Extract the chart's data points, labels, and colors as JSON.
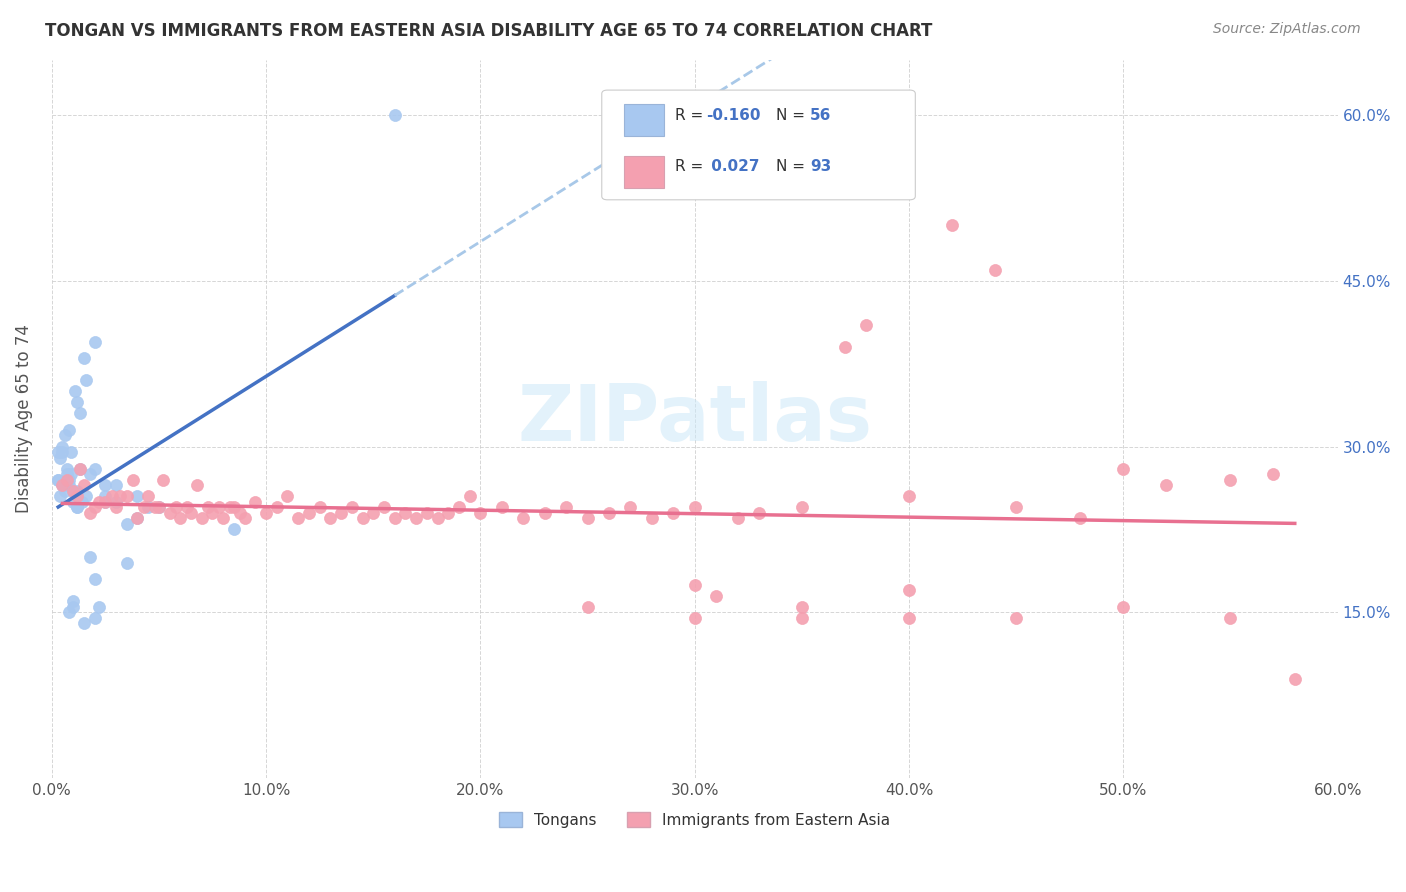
{
  "title": "TONGAN VS IMMIGRANTS FROM EASTERN ASIA DISABILITY AGE 65 TO 74 CORRELATION CHART",
  "source": "Source: ZipAtlas.com",
  "ylabel": "Disability Age 65 to 74",
  "xmin": 0.0,
  "xmax": 0.6,
  "ymin": 0.0,
  "ymax": 0.65,
  "yticks": [
    0.15,
    0.3,
    0.45,
    0.6
  ],
  "ytick_labels": [
    "15.0%",
    "30.0%",
    "45.0%",
    "60.0%"
  ],
  "tongan_color": "#a8c8f0",
  "eastern_asia_color": "#f4a0b0",
  "trendline_tongan_color": "#4472c4",
  "trendline_eastern_color": "#e87090",
  "trendline_extrap_color": "#a8c8e8",
  "background_color": "#ffffff",
  "tongan_x": [
    0.003,
    0.003,
    0.003,
    0.004,
    0.004,
    0.005,
    0.005,
    0.005,
    0.006,
    0.006,
    0.006,
    0.007,
    0.007,
    0.008,
    0.008,
    0.008,
    0.009,
    0.009,
    0.01,
    0.01,
    0.01,
    0.011,
    0.012,
    0.012,
    0.012,
    0.013,
    0.013,
    0.014,
    0.015,
    0.016,
    0.016,
    0.018,
    0.018,
    0.02,
    0.02,
    0.02,
    0.022,
    0.025,
    0.025,
    0.025,
    0.03,
    0.03,
    0.035,
    0.035,
    0.04,
    0.04,
    0.045,
    0.05,
    0.085,
    0.16,
    0.008,
    0.01,
    0.012,
    0.015,
    0.02
  ],
  "tongan_y": [
    0.27,
    0.295,
    0.27,
    0.29,
    0.255,
    0.3,
    0.295,
    0.265,
    0.31,
    0.26,
    0.265,
    0.28,
    0.275,
    0.27,
    0.315,
    0.265,
    0.295,
    0.275,
    0.26,
    0.25,
    0.155,
    0.35,
    0.34,
    0.26,
    0.245,
    0.28,
    0.33,
    0.25,
    0.38,
    0.36,
    0.255,
    0.2,
    0.275,
    0.395,
    0.28,
    0.18,
    0.155,
    0.265,
    0.25,
    0.255,
    0.265,
    0.25,
    0.23,
    0.195,
    0.255,
    0.235,
    0.245,
    0.245,
    0.225,
    0.6,
    0.15,
    0.16,
    0.245,
    0.14,
    0.145
  ],
  "eastern_x": [
    0.005,
    0.007,
    0.01,
    0.012,
    0.013,
    0.015,
    0.018,
    0.02,
    0.022,
    0.025,
    0.028,
    0.03,
    0.032,
    0.035,
    0.038,
    0.04,
    0.043,
    0.045,
    0.048,
    0.05,
    0.052,
    0.055,
    0.058,
    0.06,
    0.063,
    0.065,
    0.068,
    0.07,
    0.073,
    0.075,
    0.078,
    0.08,
    0.083,
    0.085,
    0.088,
    0.09,
    0.095,
    0.1,
    0.105,
    0.11,
    0.115,
    0.12,
    0.125,
    0.13,
    0.135,
    0.14,
    0.145,
    0.15,
    0.155,
    0.16,
    0.165,
    0.17,
    0.175,
    0.18,
    0.185,
    0.19,
    0.195,
    0.2,
    0.21,
    0.22,
    0.23,
    0.24,
    0.25,
    0.26,
    0.27,
    0.28,
    0.29,
    0.3,
    0.31,
    0.32,
    0.33,
    0.35,
    0.37,
    0.38,
    0.4,
    0.42,
    0.44,
    0.45,
    0.48,
    0.5,
    0.52,
    0.55,
    0.57,
    0.3,
    0.35,
    0.4,
    0.45,
    0.5,
    0.55,
    0.58,
    0.25,
    0.3,
    0.35,
    0.4
  ],
  "eastern_y": [
    0.265,
    0.27,
    0.26,
    0.255,
    0.28,
    0.265,
    0.24,
    0.245,
    0.25,
    0.25,
    0.255,
    0.245,
    0.255,
    0.255,
    0.27,
    0.235,
    0.245,
    0.255,
    0.245,
    0.245,
    0.27,
    0.24,
    0.245,
    0.235,
    0.245,
    0.24,
    0.265,
    0.235,
    0.245,
    0.24,
    0.245,
    0.235,
    0.245,
    0.245,
    0.24,
    0.235,
    0.25,
    0.24,
    0.245,
    0.255,
    0.235,
    0.24,
    0.245,
    0.235,
    0.24,
    0.245,
    0.235,
    0.24,
    0.245,
    0.235,
    0.24,
    0.235,
    0.24,
    0.235,
    0.24,
    0.245,
    0.255,
    0.24,
    0.245,
    0.235,
    0.24,
    0.245,
    0.235,
    0.24,
    0.245,
    0.235,
    0.24,
    0.245,
    0.165,
    0.235,
    0.24,
    0.245,
    0.39,
    0.41,
    0.255,
    0.5,
    0.46,
    0.245,
    0.235,
    0.28,
    0.265,
    0.27,
    0.275,
    0.175,
    0.155,
    0.17,
    0.145,
    0.155,
    0.145,
    0.09,
    0.155,
    0.145,
    0.145,
    0.145
  ]
}
